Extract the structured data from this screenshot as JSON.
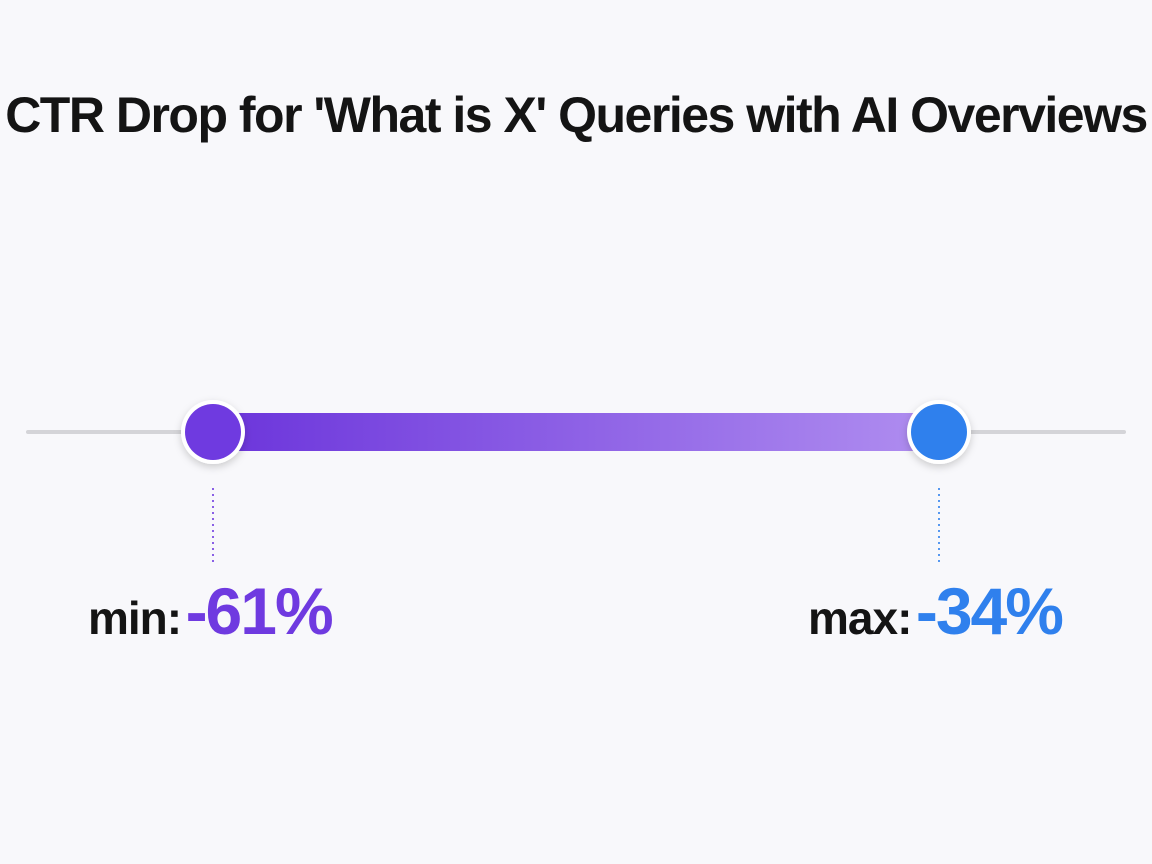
{
  "chart_data": {
    "type": "range",
    "title": "CTR Drop for 'What is X' Queries with AI Overviews",
    "unit": "%",
    "min": {
      "prefix": "min:",
      "label": "-61%",
      "value": -61,
      "color": "#6f3ae0"
    },
    "max": {
      "prefix": "max:",
      "label": "-34%",
      "value": -34,
      "color": "#2f80ed"
    },
    "gradient": [
      "#6b34db",
      "#b08ef0"
    ],
    "track_color": "#d4d4d8"
  }
}
